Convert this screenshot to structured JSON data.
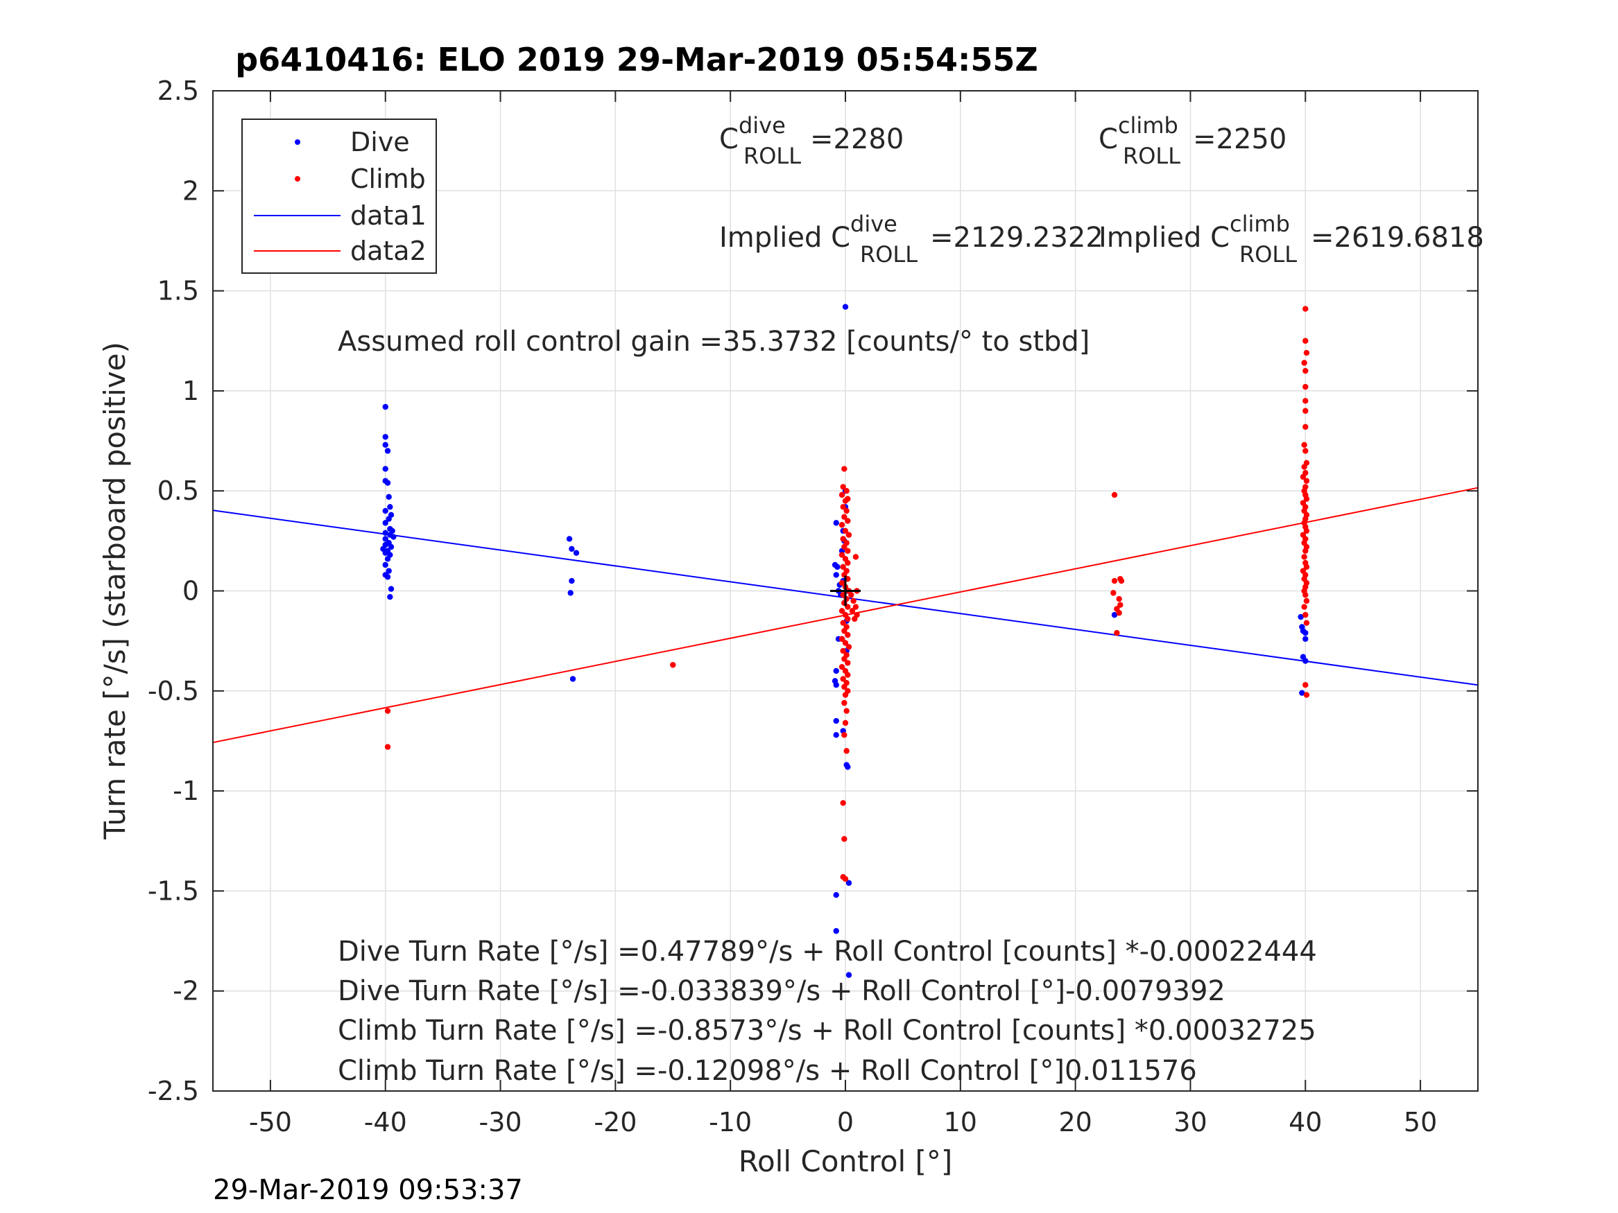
{
  "chart_data": {
    "type": "scatter",
    "title": "p6410416: ELO 2019 29-Mar-2019 05:54:55Z",
    "xlabel": "Roll Control [°]",
    "ylabel": "Turn rate [°/s] (starboard positive)",
    "xlim": [
      -55,
      55
    ],
    "ylim": [
      -2.5,
      2.5
    ],
    "xticks": [
      "-50",
      "-40",
      "-30",
      "-20",
      "-10",
      "0",
      "10",
      "20",
      "30",
      "40",
      "50"
    ],
    "yticks": [
      "-2.5",
      "-2",
      "-1.5",
      "-1",
      "-0.5",
      "0",
      "0.5",
      "1",
      "1.5",
      "2",
      "2.5"
    ],
    "grid": true,
    "legend_position": "top-left",
    "legend": [
      "Dive",
      "Climb",
      "data1",
      "data2"
    ],
    "colors": {
      "dive": "#0000ff",
      "climb": "#ff0000"
    },
    "series": [
      {
        "name": "Dive",
        "kind": "points",
        "color": "#0000ff",
        "points": [
          [
            -40,
            0.92
          ],
          [
            -40,
            0.77
          ],
          [
            -40,
            0.73
          ],
          [
            -39.8,
            0.7
          ],
          [
            -40,
            0.61
          ],
          [
            -40,
            0.55
          ],
          [
            -39.8,
            0.54
          ],
          [
            -39.7,
            0.47
          ],
          [
            -39.6,
            0.42
          ],
          [
            -40,
            0.4
          ],
          [
            -39.5,
            0.38
          ],
          [
            -39.7,
            0.36
          ],
          [
            -40,
            0.34
          ],
          [
            -39.6,
            0.31
          ],
          [
            -39.4,
            0.3
          ],
          [
            -40,
            0.29
          ],
          [
            -39.6,
            0.28
          ],
          [
            -39.3,
            0.27
          ],
          [
            -40,
            0.26
          ],
          [
            -39.7,
            0.24
          ],
          [
            -40,
            0.23
          ],
          [
            -39.5,
            0.22
          ],
          [
            -40.2,
            0.21
          ],
          [
            -39.8,
            0.2
          ],
          [
            -40,
            0.19
          ],
          [
            -39.6,
            0.18
          ],
          [
            -39.8,
            0.16
          ],
          [
            -40,
            0.13
          ],
          [
            -39.7,
            0.1
          ],
          [
            -40,
            0.08
          ],
          [
            -39.8,
            0.07
          ],
          [
            -39.5,
            0.01
          ],
          [
            -39.6,
            -0.03
          ],
          [
            -24,
            0.26
          ],
          [
            -23.8,
            0.21
          ],
          [
            -23.4,
            0.19
          ],
          [
            -23.8,
            0.05
          ],
          [
            -23.9,
            -0.01
          ],
          [
            -23.7,
            -0.44
          ],
          [
            -0.8,
            0.34
          ],
          [
            -0.9,
            0.13
          ],
          [
            -0.7,
            0.12
          ],
          [
            -0.8,
            0.08
          ],
          [
            -0.5,
            0.03
          ],
          [
            -0.6,
            0.0
          ],
          [
            -0.4,
            -0.02
          ],
          [
            -0.6,
            -0.24
          ],
          [
            -0.8,
            -0.4
          ],
          [
            -0.9,
            -0.45
          ],
          [
            -0.8,
            -0.47
          ],
          [
            -0.8,
            -0.65
          ],
          [
            -0.8,
            -0.72
          ],
          [
            0,
            0.5
          ],
          [
            0,
            0.42
          ],
          [
            -0.2,
            0.3
          ],
          [
            -0.1,
            0.25
          ],
          [
            -0.3,
            0.2
          ],
          [
            0.1,
            0.1
          ],
          [
            -0.2,
            0.05
          ],
          [
            0.2,
            0.0
          ],
          [
            -0.1,
            -0.06
          ],
          [
            0.1,
            -0.15
          ],
          [
            -0.3,
            -0.24
          ],
          [
            0.1,
            -0.3
          ],
          [
            -0.2,
            -0.7
          ],
          [
            0,
            1.42
          ],
          [
            0.1,
            -0.87
          ],
          [
            0.2,
            -0.88
          ],
          [
            0.3,
            -1.46
          ],
          [
            -0.8,
            -1.52
          ],
          [
            -0.8,
            -1.7
          ],
          [
            0.3,
            -1.92
          ],
          [
            23.4,
            -0.12
          ],
          [
            39.6,
            -0.13
          ],
          [
            39.7,
            -0.18
          ],
          [
            39.8,
            -0.2
          ],
          [
            40,
            -0.21
          ],
          [
            40,
            -0.24
          ],
          [
            39.8,
            -0.33
          ],
          [
            40,
            -0.35
          ],
          [
            39.7,
            -0.51
          ]
        ]
      },
      {
        "name": "Climb",
        "kind": "points",
        "color": "#ff0000",
        "points": [
          [
            -39.8,
            -0.6
          ],
          [
            -39.8,
            -0.78
          ],
          [
            -15,
            -0.37
          ],
          [
            -0.1,
            0.61
          ],
          [
            -0.2,
            0.52
          ],
          [
            0.1,
            0.5
          ],
          [
            -0.3,
            0.48
          ],
          [
            0.2,
            0.46
          ],
          [
            0,
            0.45
          ],
          [
            -0.2,
            0.42
          ],
          [
            0.1,
            0.4
          ],
          [
            -0.1,
            0.37
          ],
          [
            0.2,
            0.35
          ],
          [
            -0.3,
            0.33
          ],
          [
            0,
            0.3
          ],
          [
            0.3,
            0.28
          ],
          [
            -0.2,
            0.26
          ],
          [
            0.1,
            0.24
          ],
          [
            -0.1,
            0.22
          ],
          [
            0.2,
            0.2
          ],
          [
            -0.3,
            0.18
          ],
          [
            0,
            0.16
          ],
          [
            0.2,
            0.14
          ],
          [
            -0.2,
            0.12
          ],
          [
            0.1,
            0.1
          ],
          [
            -0.1,
            0.08
          ],
          [
            0.2,
            0.06
          ],
          [
            -0.3,
            0.04
          ],
          [
            0,
            0.02
          ],
          [
            0.3,
            0.0
          ],
          [
            -0.2,
            -0.02
          ],
          [
            0.1,
            -0.04
          ],
          [
            -0.1,
            -0.06
          ],
          [
            0.2,
            -0.08
          ],
          [
            -0.3,
            -0.1
          ],
          [
            0,
            -0.12
          ],
          [
            0.2,
            -0.14
          ],
          [
            -0.2,
            -0.16
          ],
          [
            0.1,
            -0.18
          ],
          [
            -0.1,
            -0.2
          ],
          [
            0.2,
            -0.22
          ],
          [
            -0.3,
            -0.24
          ],
          [
            0,
            -0.26
          ],
          [
            0.3,
            -0.28
          ],
          [
            -0.2,
            -0.3
          ],
          [
            0.1,
            -0.32
          ],
          [
            -0.1,
            -0.34
          ],
          [
            0.2,
            -0.36
          ],
          [
            -0.3,
            -0.38
          ],
          [
            0,
            -0.4
          ],
          [
            0.2,
            -0.42
          ],
          [
            -0.2,
            -0.44
          ],
          [
            0.1,
            -0.46
          ],
          [
            -0.1,
            -0.48
          ],
          [
            0.2,
            -0.5
          ],
          [
            0,
            -0.52
          ],
          [
            -0.1,
            -0.56
          ],
          [
            0.1,
            -0.6
          ],
          [
            0,
            -0.66
          ],
          [
            -0.1,
            -0.72
          ],
          [
            0.1,
            -0.8
          ],
          [
            -0.2,
            -1.06
          ],
          [
            -0.1,
            -1.24
          ],
          [
            -0.2,
            -1.43
          ],
          [
            0,
            -1.44
          ],
          [
            0.5,
            -0.02
          ],
          [
            0.7,
            -0.05
          ],
          [
            0.9,
            -0.08
          ],
          [
            0.6,
            -0.1
          ],
          [
            1.0,
            -0.12
          ],
          [
            0.8,
            -0.14
          ],
          [
            0.9,
            0.17
          ],
          [
            1.0,
            0.0
          ],
          [
            23.4,
            0.48
          ],
          [
            23.4,
            0.05
          ],
          [
            23.9,
            0.06
          ],
          [
            24,
            0.05
          ],
          [
            23.3,
            -0.01
          ],
          [
            23.8,
            -0.04
          ],
          [
            23.9,
            -0.07
          ],
          [
            23.6,
            -0.09
          ],
          [
            23.8,
            -0.11
          ],
          [
            23.6,
            -0.21
          ],
          [
            40,
            1.41
          ],
          [
            40,
            1.25
          ],
          [
            40.1,
            1.19
          ],
          [
            39.9,
            1.14
          ],
          [
            40,
            1.1
          ],
          [
            40,
            1.02
          ],
          [
            40,
            0.95
          ],
          [
            40,
            0.9
          ],
          [
            40,
            0.82
          ],
          [
            39.9,
            0.73
          ],
          [
            40,
            0.7
          ],
          [
            40.1,
            0.64
          ],
          [
            39.9,
            0.62
          ],
          [
            40,
            0.59
          ],
          [
            39.8,
            0.57
          ],
          [
            40.1,
            0.55
          ],
          [
            40,
            0.52
          ],
          [
            39.9,
            0.5
          ],
          [
            40,
            0.48
          ],
          [
            40.1,
            0.46
          ],
          [
            39.8,
            0.44
          ],
          [
            40,
            0.42
          ],
          [
            39.9,
            0.4
          ],
          [
            40.1,
            0.38
          ],
          [
            40,
            0.36
          ],
          [
            39.9,
            0.34
          ],
          [
            40,
            0.32
          ],
          [
            40.1,
            0.3
          ],
          [
            39.8,
            0.28
          ],
          [
            40,
            0.26
          ],
          [
            39.9,
            0.24
          ],
          [
            40.1,
            0.22
          ],
          [
            40,
            0.2
          ],
          [
            39.9,
            0.17
          ],
          [
            40,
            0.14
          ],
          [
            40.1,
            0.12
          ],
          [
            39.8,
            0.1
          ],
          [
            40,
            0.08
          ],
          [
            39.9,
            0.06
          ],
          [
            40.1,
            0.04
          ],
          [
            40,
            0.02
          ],
          [
            39.9,
            0.0
          ],
          [
            40,
            -0.02
          ],
          [
            40.1,
            -0.05
          ],
          [
            39.9,
            -0.08
          ],
          [
            40,
            -0.12
          ],
          [
            40.1,
            -0.16
          ],
          [
            40,
            -0.47
          ],
          [
            40.1,
            -0.52
          ]
        ]
      },
      {
        "name": "data1",
        "kind": "line",
        "color": "#0000ff",
        "intercept": -0.033839,
        "slope": -0.0079392,
        "x": [
          -55,
          55
        ],
        "y": [
          0.4028,
          -0.4705
        ]
      },
      {
        "name": "data2",
        "kind": "line",
        "color": "#ff0000",
        "intercept": -0.12098,
        "slope": 0.011576,
        "x": [
          -55,
          55
        ],
        "y": [
          -0.7577,
          0.5157
        ]
      }
    ],
    "marker": {
      "kind": "cross",
      "x": 0,
      "y": 0,
      "color": "#000000"
    },
    "annotations": {
      "c_dive_prefix": "C",
      "c_dive_sup": "dive",
      "c_dive_sub": "ROLL",
      "c_dive_value": "=2280",
      "c_climb_prefix": "C",
      "c_climb_sup": "climb",
      "c_climb_sub": "ROLL",
      "c_climb_value": "=2250",
      "implied_dive_prefix": "Implied C",
      "implied_dive_sup": "dive",
      "implied_dive_sub": "ROLL",
      "implied_dive_value": "=2129.2322",
      "implied_climb_prefix": "Implied C",
      "implied_climb_sup": "climb",
      "implied_climb_sub": "ROLL",
      "implied_climb_value": "=2619.6818",
      "gain": "Assumed roll control gain =35.3732 [counts/° to stbd]",
      "eq1": "Dive Turn Rate [°/s] =0.47789°/s + Roll Control [counts] *-0.00022444",
      "eq2": "Dive Turn Rate [°/s] =-0.033839°/s + Roll Control [°]-0.0079392",
      "eq3": "Climb Turn Rate [°/s] =-0.8573°/s + Roll Control [counts] *0.00032725",
      "eq4": "Climb Turn Rate [°/s] =-0.12098°/s + Roll Control [°]0.011576"
    },
    "footer_timestamp": "29-Mar-2019 09:53:37"
  }
}
